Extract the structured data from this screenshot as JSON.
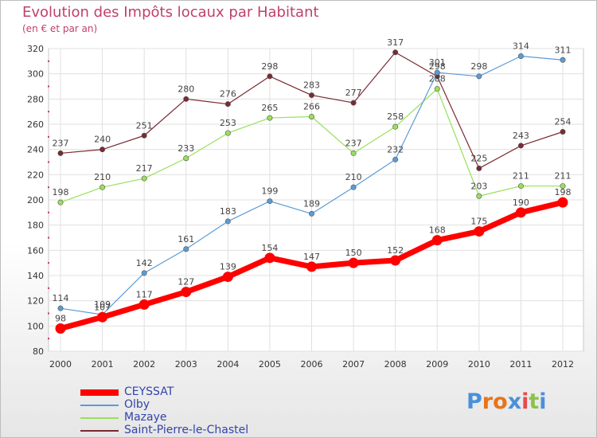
{
  "chart_data": {
    "type": "line",
    "title": "Evolution des Impôts locaux par Habitant",
    "subtitle": "(en € et par an)",
    "categories": [
      "2000",
      "2001",
      "2002",
      "2003",
      "2004",
      "2005",
      "2006",
      "2007",
      "2008",
      "2009",
      "2010",
      "2011",
      "2012"
    ],
    "ylim": [
      80,
      320
    ],
    "yticks": [
      80,
      100,
      120,
      140,
      160,
      180,
      200,
      220,
      240,
      260,
      280,
      300,
      320
    ],
    "grid": true,
    "legend_position": "bottom-left",
    "series": [
      {
        "name": "CEYSSAT",
        "color": "#ff0000",
        "values": [
          98,
          107,
          117,
          127,
          139,
          154,
          147,
          150,
          152,
          168,
          175,
          190,
          198
        ]
      },
      {
        "name": "Olby",
        "color": "#5b9bd5",
        "values": [
          114,
          109,
          142,
          161,
          183,
          199,
          189,
          210,
          232,
          301,
          298,
          314,
          311
        ]
      },
      {
        "name": "Mazaye",
        "color": "#99e05a",
        "values": [
          198,
          210,
          217,
          233,
          253,
          265,
          266,
          237,
          258,
          288,
          203,
          211,
          211
        ]
      },
      {
        "name": "Saint-Pierre-le-Chastel",
        "color": "#7a2a33",
        "values": [
          237,
          240,
          251,
          280,
          276,
          298,
          283,
          277,
          317,
          298,
          225,
          243,
          254
        ]
      }
    ]
  },
  "brand": {
    "text": "Proxiti",
    "letter_colors": [
      "#4a90d9",
      "#e8731a",
      "#e8731a",
      "#4a90d9",
      "#e84a4a",
      "#8bc34a",
      "#4a90d9"
    ]
  }
}
